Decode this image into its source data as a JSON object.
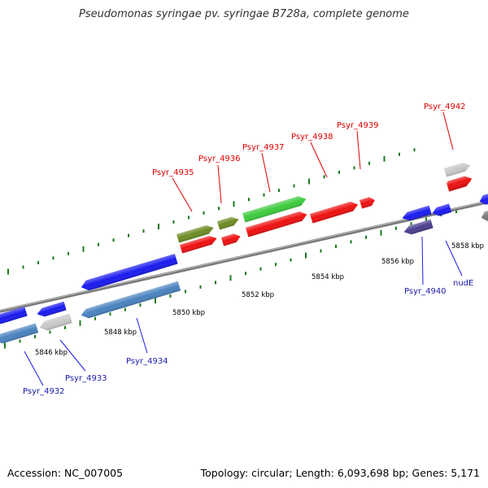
{
  "title": "Pseudomonas syringae pv. syringae B728a, complete genome",
  "footer": {
    "accession": "Accession: NC_007005",
    "topology": "Topology: circular; Length: 6,093,698 bp; Genes: 5,171"
  },
  "colors": {
    "forward_label": "#dd0000",
    "reverse_label": "#1a1aaa",
    "backbone": "#7a7a7a",
    "tick_dot": "#1c7a1c"
  },
  "coordinate_labels": [
    "5846 kbp",
    "5848 kbp",
    "5850 kbp",
    "5852 kbp",
    "5854 kbp",
    "5856 kbp",
    "5858 kbp"
  ],
  "forward_labels": [
    "Psyr_4935",
    "Psyr_4936",
    "Psyr_4937",
    "Psyr_4938",
    "Psyr_4939",
    "Psyr_4942"
  ],
  "reverse_labels": [
    "Psyr_4932",
    "Psyr_4933",
    "Psyr_4934",
    "Psyr_4940",
    "nudE"
  ],
  "gene_features": [
    {
      "strand": "reverse",
      "row": "upper",
      "color": "#1b1bef"
    },
    {
      "strand": "reverse",
      "row": "upper",
      "color": "#1b1bef"
    },
    {
      "strand": "reverse",
      "row": "upper",
      "color": "#1b1bef"
    },
    {
      "strand": "reverse",
      "row": "lower",
      "color": "#4a83bf"
    },
    {
      "strand": "reverse",
      "row": "lower",
      "color": "#c8c8c8"
    },
    {
      "strand": "reverse",
      "row": "lower",
      "color": "#4a83bf"
    },
    {
      "strand": "forward",
      "row": "upper",
      "color": "#6d8c25"
    },
    {
      "strand": "forward",
      "row": "upper",
      "color": "#6d8c25"
    },
    {
      "strand": "forward",
      "row": "upper",
      "color": "#3ecb3e"
    },
    {
      "strand": "forward",
      "row": "lower",
      "color": "#ee1111"
    },
    {
      "strand": "forward",
      "row": "lower",
      "color": "#ee1111"
    },
    {
      "strand": "forward",
      "row": "lower",
      "color": "#ee1111"
    },
    {
      "strand": "forward",
      "row": "lower",
      "color": "#ee1111"
    },
    {
      "strand": "forward",
      "row": "lower",
      "color": "#ee1111"
    },
    {
      "strand": "forward",
      "row": "lower",
      "color": "#ee1111"
    },
    {
      "strand": "reverse",
      "row": "upper",
      "color": "#1b1bef"
    },
    {
      "strand": "reverse",
      "row": "upper",
      "color": "#1b1bef"
    },
    {
      "strand": "reverse",
      "row": "lower",
      "color": "#4b3f8f"
    },
    {
      "strand": "reverse",
      "row": "lower",
      "color": "#7a7a7a"
    },
    {
      "strand": "forward",
      "row": "upper",
      "color": "#c8c8c8"
    },
    {
      "strand": "forward",
      "row": "lower",
      "color": "#ee1111"
    },
    {
      "strand": "reverse",
      "row": "upper",
      "color": "#1b1bef"
    }
  ]
}
